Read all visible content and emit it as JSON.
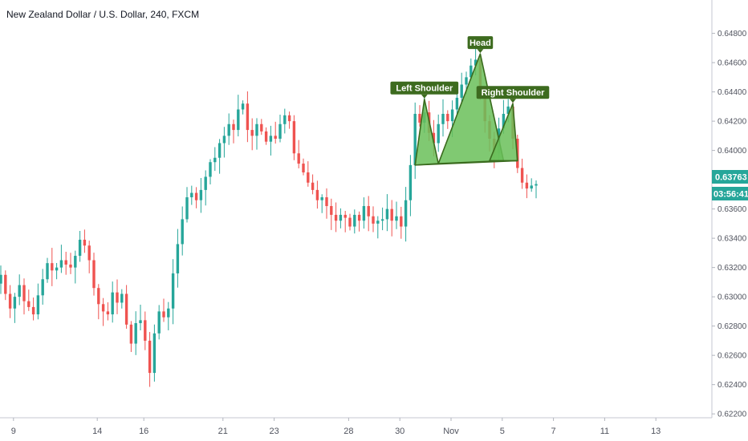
{
  "header": {
    "title": "New Zealand Dollar / U.S. Dollar, 240, FXCM"
  },
  "price_tag": {
    "price": "0.63763",
    "countdown": "03:56:41"
  },
  "colors": {
    "up": "#26a69a",
    "down": "#ef5350",
    "pattern_fill": "#6abf59",
    "pattern_stroke": "#3a6b1e",
    "label_bg": "#3d6b1f",
    "price_tag_bg": "#26a69a"
  },
  "chart_data": {
    "type": "candlestick",
    "symbol": "NZDUSD",
    "timeframe": "240",
    "source": "FXCM",
    "y_ticks": [
      "0.64800",
      "0.64600",
      "0.64400",
      "0.64200",
      "0.64000",
      "0.63800",
      "0.63600",
      "0.63400",
      "0.63200",
      "0.63000",
      "0.62800",
      "0.62600",
      "0.62400",
      "0.62200"
    ],
    "y_tick_values": [
      0.648,
      0.646,
      0.644,
      0.642,
      0.64,
      0.638,
      0.636,
      0.634,
      0.632,
      0.63,
      0.628,
      0.626,
      0.624,
      0.622
    ],
    "ylim": [
      0.6219,
      0.6495
    ],
    "x_ticks": [
      {
        "label": "9",
        "bar": 1
      },
      {
        "label": "14",
        "bar": 19
      },
      {
        "label": "16",
        "bar": 29
      },
      {
        "label": "21",
        "bar": 46
      },
      {
        "label": "23",
        "bar": 57
      },
      {
        "label": "28",
        "bar": 73
      },
      {
        "label": "30",
        "bar": 84
      },
      {
        "label": "Nov",
        "bar": 95
      },
      {
        "label": "5",
        "bar": 106
      },
      {
        "label": "7",
        "bar": 117
      },
      {
        "label": "11",
        "bar": 128
      },
      {
        "label": "13",
        "bar": 139
      }
    ],
    "closes": [
      0.6315,
      0.6302,
      0.6292,
      0.63,
      0.6308,
      0.6297,
      0.6293,
      0.6288,
      0.6301,
      0.6312,
      0.6323,
      0.6318,
      0.632,
      0.6325,
      0.6322,
      0.632,
      0.6328,
      0.6339,
      0.6335,
      0.6325,
      0.6306,
      0.6295,
      0.629,
      0.6288,
      0.6303,
      0.6296,
      0.6302,
      0.6281,
      0.6268,
      0.6282,
      0.6284,
      0.627,
      0.6248,
      0.6275,
      0.629,
      0.6286,
      0.6292,
      0.6316,
      0.6336,
      0.6353,
      0.6368,
      0.6371,
      0.6366,
      0.6373,
      0.6382,
      0.6392,
      0.6395,
      0.6405,
      0.641,
      0.6418,
      0.6414,
      0.6428,
      0.6432,
      0.6414,
      0.641,
      0.6418,
      0.6413,
      0.6406,
      0.641,
      0.6408,
      0.6418,
      0.6424,
      0.642,
      0.6398,
      0.6391,
      0.6385,
      0.6378,
      0.6373,
      0.6366,
      0.6368,
      0.6362,
      0.6356,
      0.6352,
      0.6356,
      0.6354,
      0.6348,
      0.6356,
      0.6352,
      0.6362,
      0.6355,
      0.635,
      0.6352,
      0.6353,
      0.636,
      0.6352,
      0.6355,
      0.6348,
      0.6366,
      0.639,
      0.6425,
      0.6419,
      0.6426,
      0.6412,
      0.6405,
      0.6418,
      0.6425,
      0.642,
      0.6428,
      0.6436,
      0.6445,
      0.645,
      0.6458,
      0.6462,
      0.644,
      0.642,
      0.6408,
      0.6398,
      0.6415,
      0.6425,
      0.643,
      0.6408,
      0.6388,
      0.6378,
      0.6374,
      0.6376,
      0.6377
    ],
    "annotations": [
      {
        "text": "Head",
        "point": {
          "bar": 103,
          "price": 0.6466
        }
      },
      {
        "text": "Left Shoulder",
        "point": {
          "bar": 91,
          "price": 0.6435
        }
      },
      {
        "text": "Right Shoulder",
        "point": {
          "bar": 110,
          "price": 0.6432
        }
      }
    ],
    "pattern": {
      "type": "head-and-shoulders",
      "triangles": [
        {
          "points": [
            {
              "bar": 89,
              "price": 0.639
            },
            {
              "bar": 91,
              "price": 0.6435
            },
            {
              "bar": 94,
              "price": 0.6391
            }
          ]
        },
        {
          "points": [
            {
              "bar": 94,
              "price": 0.6391
            },
            {
              "bar": 103,
              "price": 0.6466
            },
            {
              "bar": 108,
              "price": 0.6393
            }
          ]
        },
        {
          "points": [
            {
              "bar": 105,
              "price": 0.6393
            },
            {
              "bar": 110,
              "price": 0.6432
            },
            {
              "bar": 111,
              "price": 0.6393
            }
          ]
        }
      ],
      "neckline": [
        {
          "bar": 89,
          "price": 0.639
        },
        {
          "bar": 111,
          "price": 0.6393
        }
      ]
    }
  }
}
